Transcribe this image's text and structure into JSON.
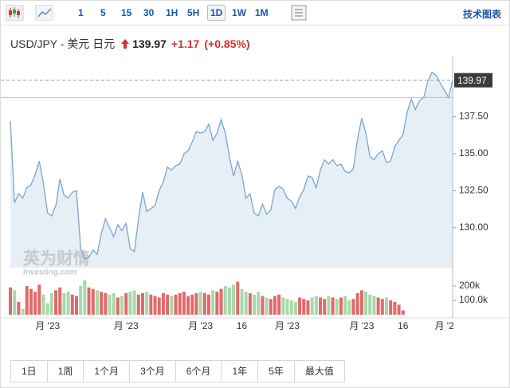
{
  "toolbar": {
    "intervals": [
      "1",
      "5",
      "15",
      "30",
      "1H",
      "5H",
      "1D",
      "1W",
      "1M"
    ],
    "active": 6,
    "technical": "技术图表"
  },
  "header": {
    "symbol": "USD/JPY - 美元 日元",
    "price": "139.97",
    "change": "+1.17",
    "change_pct": "(+0.85%)"
  },
  "watermark": {
    "name": "英为财情",
    "site": "Investing.com"
  },
  "chart_data": {
    "type": "area",
    "color": "#7aa6cf",
    "fill": "#e6eef6",
    "ylim": [
      127.3,
      141.3
    ],
    "yticks": [
      {
        "value": 130,
        "label": "130.00"
      },
      {
        "value": 132.5,
        "label": "132.50"
      },
      {
        "value": 135,
        "label": "135.00"
      },
      {
        "value": 137.5,
        "label": "137.50"
      }
    ],
    "previous_close": 138.8,
    "previous_close_color": "#f2a8a8",
    "categories": [
      null,
      null,
      null,
      null,
      null,
      null,
      null,
      null,
      null,
      "月 '23",
      null,
      null,
      null,
      null,
      null,
      null,
      null,
      null,
      null,
      null,
      null,
      null,
      null,
      null,
      null,
      null,
      null,
      null,
      "月 '23",
      null,
      null,
      null,
      null,
      null,
      null,
      null,
      null,
      null,
      null,
      null,
      null,
      null,
      null,
      null,
      null,
      null,
      "月 '23",
      null,
      null,
      null,
      null,
      null,
      null,
      null,
      null,
      null,
      "16",
      null,
      null,
      null,
      null,
      null,
      null,
      null,
      null,
      null,
      null,
      "月 '23",
      null,
      null,
      null,
      null,
      null,
      null,
      null,
      null,
      null,
      null,
      null,
      null,
      null,
      null,
      null,
      null,
      null,
      "月 '23",
      null,
      null,
      null,
      null,
      null,
      null,
      null,
      null,
      null,
      "16",
      null,
      null,
      null,
      null,
      null,
      null,
      null,
      null,
      null,
      "月 '2",
      null,
      null
    ],
    "values": [
      137.2,
      131.7,
      132.3,
      132.0,
      132.7,
      132.9,
      133.6,
      134.5,
      133.0,
      131.0,
      130.8,
      131.5,
      133.3,
      132.2,
      132.0,
      132.4,
      132.5,
      128.6,
      127.9,
      128.0,
      128.5,
      128.2,
      129.6,
      130.6,
      130.0,
      129.4,
      130.2,
      129.8,
      130.3,
      128.6,
      128.4,
      130.6,
      132.4,
      131.1,
      131.3,
      131.5,
      132.5,
      133.1,
      134.1,
      133.9,
      134.2,
      134.3,
      135.0,
      135.2,
      135.8,
      136.5,
      136.4,
      136.5,
      137.0,
      135.9,
      136.4,
      137.3,
      136.4,
      134.8,
      133.5,
      134.5,
      133.6,
      132.0,
      132.3,
      131.0,
      130.8,
      131.6,
      130.9,
      131.2,
      132.6,
      132.8,
      132.6,
      132.0,
      131.8,
      131.3,
      132.1,
      132.6,
      133.5,
      133.4,
      132.7,
      133.9,
      134.6,
      134.3,
      134.6,
      134.2,
      134.3,
      133.8,
      133.7,
      134.0,
      136.0,
      137.4,
      136.4,
      134.8,
      134.6,
      135.0,
      135.2,
      134.4,
      134.5,
      135.5,
      135.9,
      136.3,
      137.8,
      138.7,
      138.0,
      138.6,
      138.8,
      139.9,
      140.5,
      140.3,
      139.8,
      139.3,
      138.8,
      139.97
    ],
    "volume": {
      "up_color": "#e06a6a",
      "down_color": "#a8d8ab",
      "ylim": [
        0,
        300000
      ],
      "yticks": [
        {
          "value": 100000,
          "label": "100.0k"
        },
        {
          "value": 200000,
          "label": "200k"
        }
      ],
      "values": [
        190000,
        170000,
        90000,
        40000,
        200000,
        180000,
        160000,
        210000,
        140000,
        80000,
        150000,
        170000,
        190000,
        150000,
        160000,
        140000,
        130000,
        200000,
        240000,
        190000,
        180000,
        170000,
        160000,
        150000,
        140000,
        150000,
        120000,
        130000,
        150000,
        160000,
        170000,
        140000,
        150000,
        160000,
        140000,
        130000,
        120000,
        150000,
        140000,
        130000,
        140000,
        150000,
        160000,
        130000,
        140000,
        150000,
        160000,
        150000,
        140000,
        170000,
        160000,
        180000,
        200000,
        190000,
        210000,
        230000,
        180000,
        160000,
        150000,
        140000,
        160000,
        130000,
        120000,
        110000,
        130000,
        140000,
        120000,
        110000,
        100000,
        90000,
        120000,
        110000,
        100000,
        120000,
        130000,
        120000,
        110000,
        130000,
        120000,
        110000,
        120000,
        130000,
        100000,
        110000,
        150000,
        170000,
        160000,
        140000,
        130000,
        120000,
        110000,
        120000,
        100000,
        90000,
        70000,
        30000,
        null,
        null,
        null,
        null,
        null,
        null,
        null,
        null,
        null,
        null,
        null,
        null
      ]
    }
  },
  "ranges": [
    "1日",
    "1周",
    "1个月",
    "3个月",
    "6个月",
    "1年",
    "5年",
    "最大值"
  ]
}
